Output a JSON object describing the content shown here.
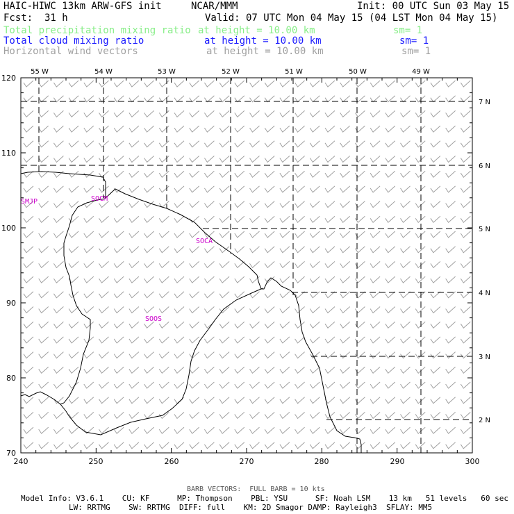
{
  "header": {
    "title": "HAIC-HIWC 13km ARW-GFS init",
    "org": "NCAR/MMM",
    "init": "Init: 00 UTC Sun 03 May 15",
    "fcst_label": "Fcst:",
    "fcst_value": "31 h",
    "valid": "Valid: 07 UTC Mon 04 May 15 (04 LST Mon 04 May 15)",
    "fields": [
      {
        "name": "Total precipitation mixing ratio",
        "height": "at height = 10.00 km",
        "sm": "sm= 1",
        "color": "#88ee88"
      },
      {
        "name": "Total cloud mixing ratio",
        "height": "at height = 10.00 km",
        "sm": "sm= 1",
        "color": "#1a1aff"
      },
      {
        "name": "Horizontal wind vectors",
        "height": "at height = 10.00 km",
        "sm": "sm= 1",
        "color": "#a0a0a0"
      }
    ]
  },
  "map": {
    "x_ticks": [
      "240",
      "250",
      "260",
      "270",
      "280",
      "290",
      "300"
    ],
    "y_ticks": [
      "70",
      "80",
      "90",
      "100",
      "110",
      "120"
    ],
    "lon_labels": [
      "55 W",
      "54 W",
      "53 W",
      "52 W",
      "51 W",
      "50 W",
      "49 W"
    ],
    "lat_labels": [
      "7 N",
      "6 N",
      "5 N",
      "4 N",
      "3 N",
      "2 N"
    ],
    "stations": [
      "SMJP",
      "SOCM",
      "SOCA",
      "SOOS"
    ],
    "station_color": "#cc00cc",
    "barb_color": "#a0a0a0"
  },
  "footer": {
    "barb_note": "BARB VECTORS:  FULL BARB = 10 kts",
    "line1": "Model Info: V3.6.1    CU: KF      MP: Thompson    PBL: YSU      SF: Noah LSM    13 km   51 levels   60 sec",
    "line2": "LW: RRTMG    SW: RRTMG  DIFF: full    KM: 2D Smagor DAMP: Rayleigh3  SFLAY: MM5"
  }
}
